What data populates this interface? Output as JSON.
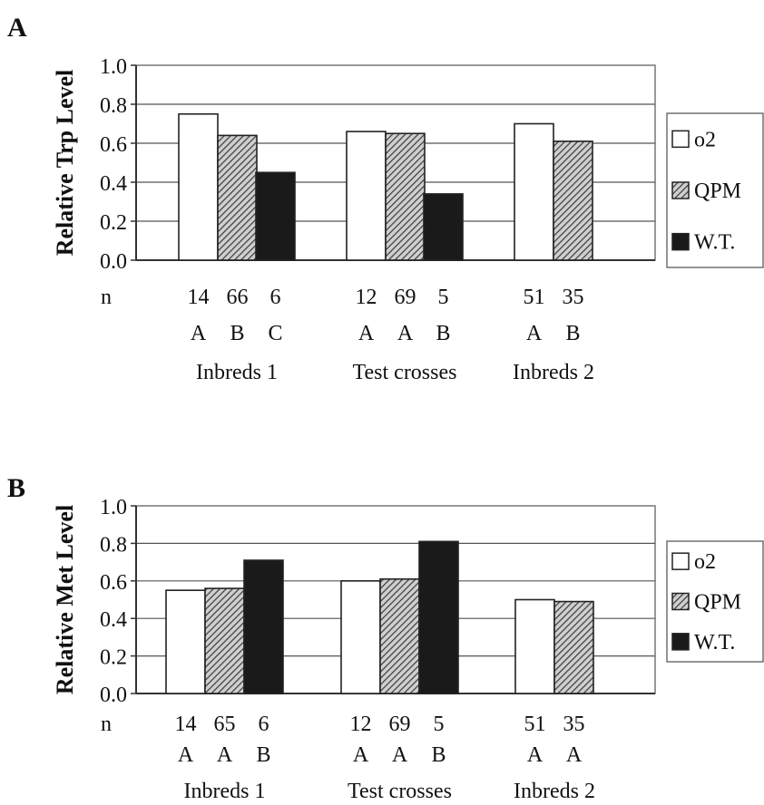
{
  "chart_data": [
    {
      "panel_label": "A",
      "type": "bar",
      "ylabel": "Relative Trp Level",
      "ylim": [
        0,
        1.0
      ],
      "yticks": [
        "0.0",
        "0.2",
        "0.4",
        "0.6",
        "0.8",
        "1.0"
      ],
      "grid": true,
      "legend": [
        "o2",
        "QPM",
        "W.T."
      ],
      "legend_position": "right",
      "n_label": "n",
      "groups": [
        {
          "name": "Inbreds 1",
          "bars": [
            {
              "series": "o2",
              "value": 0.75,
              "n": "14",
              "letter": "A"
            },
            {
              "series": "QPM",
              "value": 0.64,
              "n": "66",
              "letter": "B"
            },
            {
              "series": "W.T.",
              "value": 0.45,
              "n": "6",
              "letter": "C"
            }
          ]
        },
        {
          "name": "Test crosses",
          "bars": [
            {
              "series": "o2",
              "value": 0.66,
              "n": "12",
              "letter": "A"
            },
            {
              "series": "QPM",
              "value": 0.65,
              "n": "69",
              "letter": "A"
            },
            {
              "series": "W.T.",
              "value": 0.34,
              "n": "5",
              "letter": "B"
            }
          ]
        },
        {
          "name": "Inbreds 2",
          "bars": [
            {
              "series": "o2",
              "value": 0.7,
              "n": "51",
              "letter": "A"
            },
            {
              "series": "QPM",
              "value": 0.61,
              "n": "35",
              "letter": "B"
            }
          ]
        }
      ]
    },
    {
      "panel_label": "B",
      "type": "bar",
      "ylabel": "Relative Met Level",
      "ylim": [
        0,
        1.0
      ],
      "yticks": [
        "0.0",
        "0.2",
        "0.4",
        "0.6",
        "0.8",
        "1.0"
      ],
      "grid": true,
      "legend": [
        "o2",
        "QPM",
        "W.T."
      ],
      "legend_position": "right",
      "n_label": "n",
      "groups": [
        {
          "name": "Inbreds 1",
          "bars": [
            {
              "series": "o2",
              "value": 0.55,
              "n": "14",
              "letter": "A"
            },
            {
              "series": "QPM",
              "value": 0.56,
              "n": "65",
              "letter": "A"
            },
            {
              "series": "W.T.",
              "value": 0.71,
              "n": "6",
              "letter": "B"
            }
          ]
        },
        {
          "name": "Test crosses",
          "bars": [
            {
              "series": "o2",
              "value": 0.6,
              "n": "12",
              "letter": "A"
            },
            {
              "series": "QPM",
              "value": 0.61,
              "n": "69",
              "letter": "A"
            },
            {
              "series": "W.T.",
              "value": 0.81,
              "n": "5",
              "letter": "B"
            }
          ]
        },
        {
          "name": "Inbreds 2",
          "bars": [
            {
              "series": "o2",
              "value": 0.5,
              "n": "51",
              "letter": "A"
            },
            {
              "series": "QPM",
              "value": 0.49,
              "n": "35",
              "letter": "A"
            }
          ]
        }
      ]
    }
  ],
  "styles": {
    "o2_fill": "#ffffff",
    "qpm_fill": "#8a8a8a",
    "wt_fill": "#1a1a1a",
    "stroke": "#222222",
    "grid": "#555555"
  }
}
